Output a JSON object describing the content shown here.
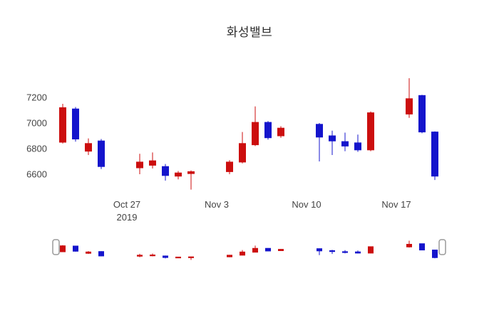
{
  "chart_data": {
    "type": "candlestick",
    "title": "화성밸브",
    "increasing_color": "#cc0e0e",
    "decreasing_color": "#1414cc",
    "yaxis": {
      "ticks": [
        6600,
        6800,
        7000,
        7200
      ]
    },
    "xaxis": {
      "ticks": [
        {
          "label": "Oct 27",
          "sublabel": "2019",
          "date": "2019-10-27"
        },
        {
          "label": "Nov 3",
          "date": "2019-11-03"
        },
        {
          "label": "Nov 10",
          "date": "2019-11-10"
        },
        {
          "label": "Nov 17",
          "date": "2019-11-17"
        }
      ]
    },
    "range_slider": {
      "visible": true
    },
    "candles": [
      {
        "date": "2019-10-22",
        "open": 6850,
        "high": 7150,
        "low": 6840,
        "close": 7120
      },
      {
        "date": "2019-10-23",
        "open": 7110,
        "high": 7125,
        "low": 6855,
        "close": 6875
      },
      {
        "date": "2019-10-24",
        "open": 6780,
        "high": 6880,
        "low": 6750,
        "close": 6840
      },
      {
        "date": "2019-10-25",
        "open": 6860,
        "high": 6875,
        "low": 6640,
        "close": 6660
      },
      {
        "date": "2019-10-28",
        "open": 6650,
        "high": 6760,
        "low": 6600,
        "close": 6695
      },
      {
        "date": "2019-10-29",
        "open": 6670,
        "high": 6770,
        "low": 6645,
        "close": 6705
      },
      {
        "date": "2019-10-30",
        "open": 6660,
        "high": 6680,
        "low": 6550,
        "close": 6590
      },
      {
        "date": "2019-10-31",
        "open": 6585,
        "high": 6625,
        "low": 6560,
        "close": 6610
      },
      {
        "date": "2019-11-01",
        "open": 6605,
        "high": 6630,
        "low": 6480,
        "close": 6620
      },
      {
        "date": "2019-11-04",
        "open": 6620,
        "high": 6710,
        "low": 6600,
        "close": 6695
      },
      {
        "date": "2019-11-05",
        "open": 6695,
        "high": 6930,
        "low": 6685,
        "close": 6840
      },
      {
        "date": "2019-11-06",
        "open": 6830,
        "high": 7130,
        "low": 6820,
        "close": 7005
      },
      {
        "date": "2019-11-07",
        "open": 7005,
        "high": 7015,
        "low": 6870,
        "close": 6885
      },
      {
        "date": "2019-11-08",
        "open": 6900,
        "high": 6975,
        "low": 6885,
        "close": 6960
      },
      {
        "date": "2019-11-11",
        "open": 6990,
        "high": 7000,
        "low": 6700,
        "close": 6890
      },
      {
        "date": "2019-11-12",
        "open": 6900,
        "high": 6940,
        "low": 6750,
        "close": 6860
      },
      {
        "date": "2019-11-13",
        "open": 6855,
        "high": 6925,
        "low": 6780,
        "close": 6820
      },
      {
        "date": "2019-11-14",
        "open": 6845,
        "high": 6910,
        "low": 6775,
        "close": 6790
      },
      {
        "date": "2019-11-15",
        "open": 6790,
        "high": 7090,
        "low": 6780,
        "close": 7080
      },
      {
        "date": "2019-11-18",
        "open": 7070,
        "high": 7350,
        "low": 7040,
        "close": 7190
      },
      {
        "date": "2019-11-19",
        "open": 7215,
        "high": 7220,
        "low": 6920,
        "close": 6930
      },
      {
        "date": "2019-11-20",
        "open": 6930,
        "high": 6935,
        "low": 6555,
        "close": 6585
      }
    ]
  }
}
